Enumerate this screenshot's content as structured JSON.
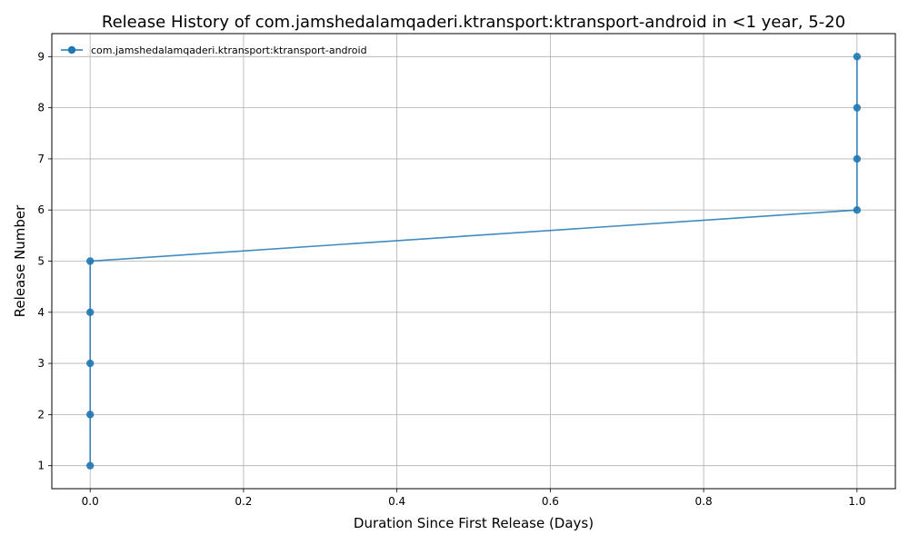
{
  "chart_data": {
    "type": "line",
    "title": "Release History of com.jamshedalamqaderi.ktransport:ktransport-android in <1 year, 5-20",
    "xlabel": "Duration Since First Release (Days)",
    "ylabel": "Release Number",
    "xlim": [
      -0.05,
      1.05
    ],
    "ylim": [
      0.55,
      9.45
    ],
    "xticks": [
      0.0,
      0.2,
      0.4,
      0.6,
      0.8,
      1.0
    ],
    "xtick_labels": [
      "0.0",
      "0.2",
      "0.4",
      "0.6",
      "0.8",
      "1.0"
    ],
    "yticks": [
      1,
      2,
      3,
      4,
      5,
      6,
      7,
      8,
      9
    ],
    "ytick_labels": [
      "1",
      "2",
      "3",
      "4",
      "5",
      "6",
      "7",
      "8",
      "9"
    ],
    "grid": true,
    "legend_position": "top-left",
    "series": [
      {
        "name": "com.jamshedalamqaderi.ktransport:ktransport-android",
        "color": "#1f77b4",
        "marker": "circle",
        "x": [
          0,
          0,
          0,
          0,
          0,
          1,
          1,
          1,
          1
        ],
        "y": [
          1,
          2,
          3,
          4,
          5,
          6,
          7,
          8,
          9
        ]
      }
    ]
  }
}
